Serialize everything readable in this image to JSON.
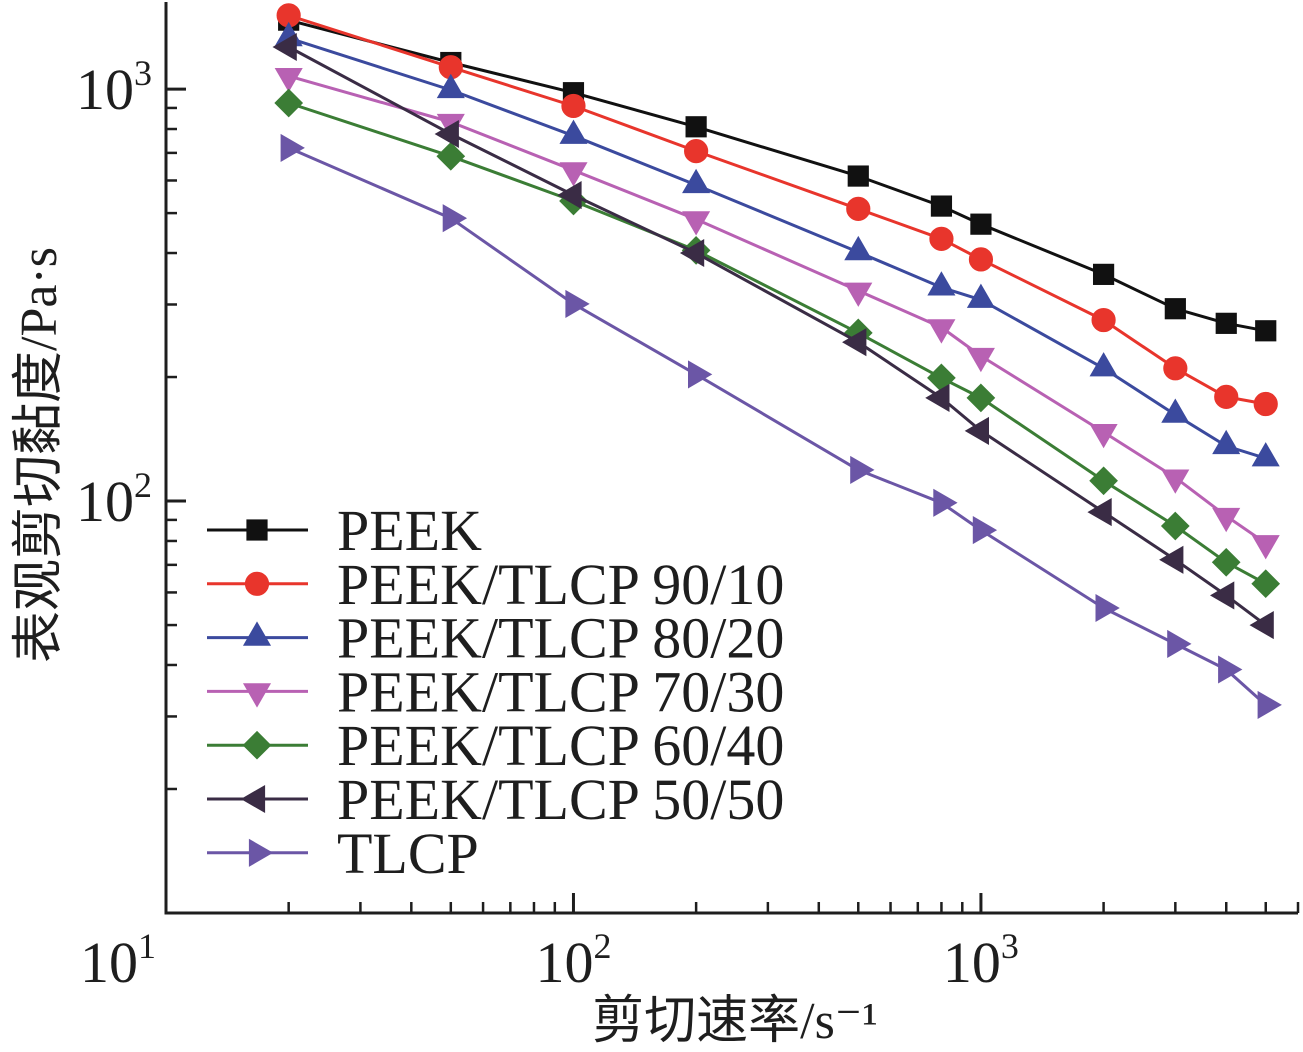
{
  "chart_data": {
    "type": "line",
    "xlabel": "剪切速率/s⁻¹",
    "ylabel": "表观剪切黏度/Pa·s",
    "xscale": "log",
    "yscale": "log",
    "xlim": [
      10,
      6000
    ],
    "ylim": [
      10,
      1600
    ],
    "grid": false,
    "legend_position": "bottom-left",
    "xticks": [
      {
        "value": 10,
        "base": "10",
        "exp": "1"
      },
      {
        "value": 100,
        "base": "10",
        "exp": "2"
      },
      {
        "value": 1000,
        "base": "10",
        "exp": "3"
      }
    ],
    "yticks": [
      {
        "value": 100,
        "base": "10",
        "exp": "2"
      },
      {
        "value": 1000,
        "base": "10",
        "exp": "3"
      }
    ],
    "x": [
      20,
      50,
      100,
      200,
      500,
      800,
      1000,
      2000,
      3000,
      4000,
      5000
    ],
    "series": [
      {
        "name": "PEEK",
        "color": "#111111",
        "marker": "square",
        "values": [
          1470,
          1160,
          980,
          810,
          615,
          520,
          470,
          355,
          293,
          270,
          259
        ]
      },
      {
        "name": "PEEK/TLCP 90/10",
        "color": "#e8352c",
        "marker": "circle",
        "values": [
          1510,
          1130,
          910,
          707,
          512,
          433,
          386,
          275,
          210,
          179,
          172
        ]
      },
      {
        "name": "PEEK/TLCP 80/20",
        "color": "#3b4a9e",
        "marker": "triangle-up",
        "values": [
          1330,
          995,
          770,
          585,
          402,
          330,
          308,
          210,
          162,
          136,
          127
        ]
      },
      {
        "name": "PEEK/TLCP 70/30",
        "color": "#b861b3",
        "marker": "triangle-down",
        "values": [
          1075,
          832,
          635,
          483,
          324,
          264,
          225,
          147,
          114,
          92,
          79
        ]
      },
      {
        "name": "PEEK/TLCP 60/40",
        "color": "#3b7d35",
        "marker": "diamond",
        "values": [
          925,
          687,
          535,
          406,
          256,
          199,
          178,
          112,
          87,
          71,
          63
        ]
      },
      {
        "name": "PEEK/TLCP 50/50",
        "color": "#3a2c45",
        "marker": "triangle-left",
        "values": [
          1265,
          778,
          553,
          400,
          243,
          178,
          148,
          94,
          72,
          59,
          50
        ]
      },
      {
        "name": "TLCP",
        "color": "#6b56a6",
        "marker": "triangle-right",
        "values": [
          720,
          486,
          301,
          203,
          119,
          99,
          85,
          55,
          45,
          39,
          32
        ]
      }
    ]
  }
}
